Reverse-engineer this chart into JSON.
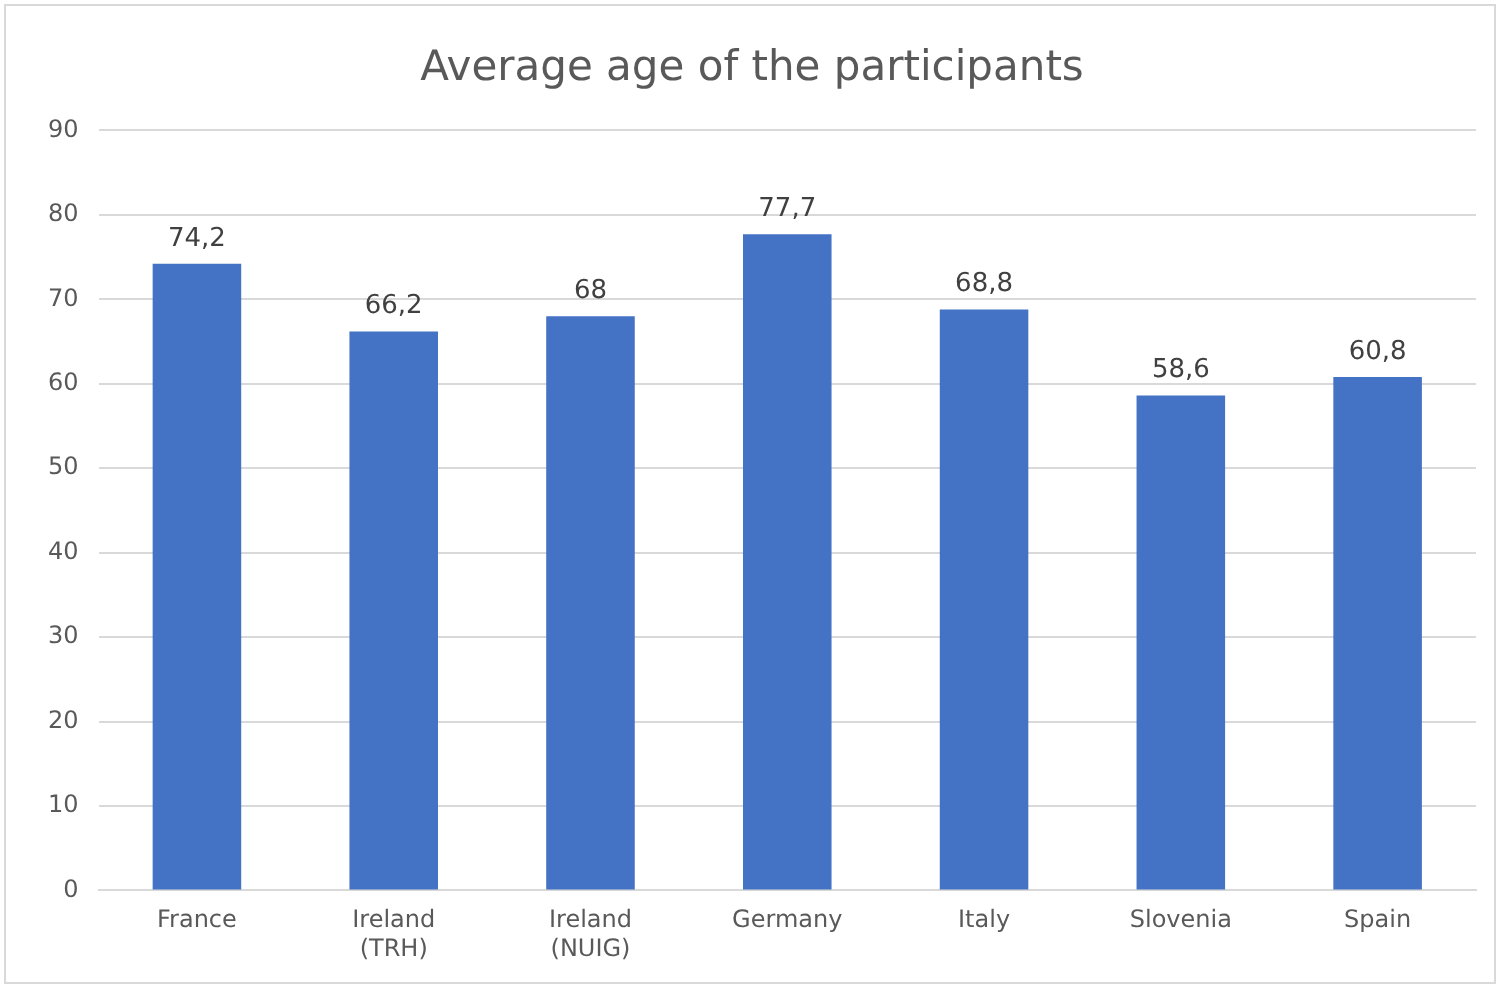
{
  "chart_data": {
    "type": "bar",
    "title": "Average age of the participants",
    "categories": [
      "France",
      "Ireland (TRH)",
      "Ireland (NUIG)",
      "Germany",
      "Italy",
      "Slovenia",
      "Spain"
    ],
    "values": [
      74.2,
      66.2,
      68,
      77.7,
      68.8,
      58.6,
      60.8
    ],
    "value_labels": [
      "74,2",
      "66,2",
      "68",
      "77,7",
      "68,8",
      "58,6",
      "60,8"
    ],
    "color": "#4472c4",
    "ylim": [
      0,
      90
    ],
    "yticks": [
      0,
      10,
      20,
      30,
      40,
      50,
      60,
      70,
      80,
      90
    ],
    "grid": "y",
    "legend": false
  }
}
